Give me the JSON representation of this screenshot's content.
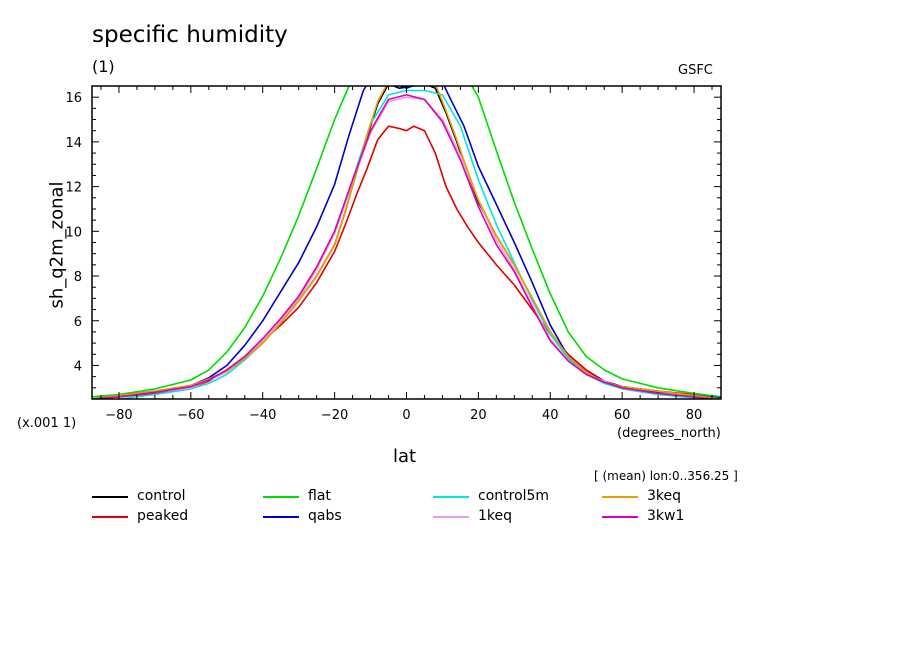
{
  "header": {
    "title": "specific humidity",
    "subtitle": "(1)",
    "source": "GSFC",
    "averaging": "[ (mean) lon:0..356.25 ]",
    "scale_note": "(x.001 1)",
    "x_units": "(degrees_north)"
  },
  "chart_data": {
    "type": "line",
    "title": "specific humidity",
    "xlabel": "lat",
    "ylabel": "sh_q2m_zonal",
    "xlim": [
      -87.5,
      87.5
    ],
    "ylim": [
      2.5,
      16.5
    ],
    "xticks": [
      -80,
      -60,
      -40,
      -20,
      0,
      20,
      40,
      60,
      80
    ],
    "yticks": [
      4,
      6,
      8,
      10,
      12,
      14,
      16
    ],
    "series": [
      {
        "name": "control",
        "color": "#000000",
        "x": [
          -87.5,
          -80,
          -70,
          -60,
          -55,
          -50,
          -45,
          -40,
          -35,
          -30,
          -25,
          -20,
          -17,
          -14,
          -11,
          -8,
          -5,
          -2,
          2,
          5,
          8,
          11,
          14,
          17,
          20,
          25,
          30,
          35,
          40,
          45,
          50,
          55,
          60,
          70,
          80,
          87.5
        ],
        "y": [
          2.5,
          2.65,
          2.85,
          3.1,
          3.4,
          3.75,
          4.3,
          5.0,
          5.9,
          6.9,
          8.0,
          9.4,
          10.9,
          12.6,
          14.2,
          15.7,
          16.6,
          16.4,
          16.5,
          16.6,
          16.4,
          15.3,
          14.0,
          12.6,
          11.3,
          9.8,
          8.5,
          7.0,
          5.5,
          4.4,
          3.7,
          3.25,
          3.05,
          2.85,
          2.65,
          2.5
        ]
      },
      {
        "name": "peaked",
        "color": "#e00000",
        "x": [
          -87.5,
          -80,
          -70,
          -60,
          -55,
          -50,
          -45,
          -40,
          -35,
          -30,
          -25,
          -20,
          -17,
          -14,
          -11,
          -8,
          -5,
          -2,
          0,
          2,
          5,
          8,
          11,
          14,
          17,
          20,
          25,
          30,
          35,
          40,
          45,
          50,
          55,
          60,
          70,
          80,
          87.5
        ],
        "y": [
          2.5,
          2.6,
          2.75,
          3.0,
          3.3,
          3.8,
          4.4,
          5.1,
          5.8,
          6.6,
          7.7,
          9.1,
          10.3,
          11.6,
          12.8,
          14.1,
          14.7,
          14.6,
          14.5,
          14.7,
          14.5,
          13.5,
          12.0,
          11.0,
          10.2,
          9.5,
          8.5,
          7.6,
          6.5,
          5.4,
          4.5,
          3.8,
          3.3,
          3.05,
          2.85,
          2.7,
          2.55
        ]
      },
      {
        "name": "flat",
        "color": "#00dd00",
        "x": [
          -87.5,
          -80,
          -70,
          -60,
          -55,
          -50,
          -45,
          -40,
          -35,
          -30,
          -25,
          -20,
          -16,
          -12,
          -8,
          -4,
          0,
          4,
          8,
          12,
          16,
          20,
          25,
          30,
          35,
          40,
          45,
          50,
          55,
          60,
          70,
          80,
          87.5
        ],
        "y": [
          2.6,
          2.7,
          2.95,
          3.35,
          3.8,
          4.6,
          5.7,
          7.1,
          8.8,
          10.7,
          12.8,
          15.0,
          16.5,
          17.2,
          17.2,
          17.05,
          17.0,
          17.05,
          17.25,
          17.3,
          17.1,
          16.0,
          13.6,
          11.3,
          9.2,
          7.2,
          5.5,
          4.4,
          3.8,
          3.4,
          3.0,
          2.75,
          2.6
        ]
      },
      {
        "name": "qabs",
        "color": "#0000cc",
        "x": [
          -87.5,
          -80,
          -70,
          -60,
          -55,
          -50,
          -45,
          -40,
          -35,
          -30,
          -25,
          -20,
          -16,
          -12,
          -9,
          -6,
          -3,
          0,
          3,
          6,
          9,
          12,
          16,
          20,
          25,
          30,
          35,
          40,
          45,
          50,
          55,
          60,
          70,
          80,
          87.5
        ],
        "y": [
          2.5,
          2.6,
          2.8,
          3.1,
          3.45,
          4.0,
          4.9,
          6.0,
          7.3,
          8.6,
          10.2,
          12.1,
          14.3,
          16.3,
          17.1,
          16.95,
          16.6,
          16.4,
          16.6,
          16.95,
          17.0,
          16.0,
          14.7,
          12.9,
          11.2,
          9.5,
          7.7,
          5.8,
          4.4,
          3.7,
          3.3,
          3.05,
          2.8,
          2.65,
          2.55
        ]
      },
      {
        "name": "control5m",
        "color": "#00e5e5",
        "x": [
          -87.5,
          -80,
          -70,
          -60,
          -55,
          -50,
          -45,
          -40,
          -35,
          -30,
          -25,
          -20,
          -15,
          -10,
          -5,
          0,
          5,
          10,
          15,
          20,
          25,
          30,
          35,
          40,
          45,
          50,
          55,
          60,
          70,
          80,
          87.5
        ],
        "y": [
          2.4,
          2.5,
          2.7,
          2.95,
          3.2,
          3.6,
          4.25,
          5.0,
          5.9,
          7.0,
          8.3,
          10.0,
          12.3,
          14.8,
          16.1,
          16.3,
          16.3,
          16.1,
          14.7,
          12.3,
          10.3,
          8.6,
          6.9,
          5.4,
          4.3,
          3.6,
          3.2,
          2.95,
          2.7,
          2.55,
          2.4
        ]
      },
      {
        "name": "1keq",
        "color": "#ee9ee0",
        "x": [
          -87.5,
          -80,
          -70,
          -60,
          -50,
          -40,
          -35,
          -30,
          -25,
          -20,
          -15,
          -10,
          -5,
          0,
          5,
          10,
          15,
          20,
          25,
          30,
          35,
          40,
          45,
          50,
          60,
          70,
          80,
          87.5
        ],
        "y": [
          2.5,
          2.6,
          2.8,
          3.0,
          3.7,
          5.1,
          6.0,
          7.0,
          8.3,
          9.9,
          12.2,
          14.4,
          15.8,
          16.0,
          15.9,
          15.0,
          13.4,
          11.4,
          9.6,
          8.3,
          6.7,
          5.2,
          4.2,
          3.6,
          3.0,
          2.75,
          2.65,
          2.5
        ]
      },
      {
        "name": "3keq",
        "color": "#e8a000",
        "x": [
          -87.5,
          -80,
          -70,
          -60,
          -55,
          -50,
          -45,
          -40,
          -35,
          -30,
          -25,
          -20,
          -17,
          -14,
          -11,
          -8,
          -5,
          -2,
          2,
          5,
          8,
          11,
          14,
          17,
          20,
          25,
          30,
          35,
          40,
          45,
          50,
          55,
          60,
          70,
          80,
          87.5
        ],
        "y": [
          2.5,
          2.65,
          2.85,
          3.1,
          3.4,
          3.75,
          4.3,
          5.0,
          5.9,
          6.9,
          8.0,
          9.4,
          10.9,
          12.6,
          14.3,
          15.8,
          16.7,
          16.6,
          16.6,
          16.7,
          16.6,
          15.4,
          14.1,
          12.7,
          11.4,
          9.8,
          8.5,
          7.0,
          5.5,
          4.4,
          3.7,
          3.25,
          3.05,
          2.85,
          2.65,
          2.5
        ]
      },
      {
        "name": "3kw1",
        "color": "#e000b0",
        "x": [
          -87.5,
          -80,
          -70,
          -60,
          -55,
          -50,
          -45,
          -40,
          -35,
          -30,
          -25,
          -20,
          -15,
          -10,
          -5,
          0,
          5,
          10,
          15,
          20,
          25,
          30,
          35,
          40,
          45,
          50,
          55,
          60,
          70,
          80,
          87.5
        ],
        "y": [
          2.5,
          2.6,
          2.8,
          3.05,
          3.35,
          3.8,
          4.4,
          5.2,
          6.1,
          7.1,
          8.4,
          10.0,
          12.3,
          14.5,
          15.9,
          16.1,
          15.9,
          14.9,
          13.2,
          11.1,
          9.4,
          8.2,
          6.6,
          5.1,
          4.2,
          3.6,
          3.25,
          3.0,
          2.75,
          2.6,
          2.45
        ]
      }
    ],
    "legend": {
      "placement": "bottom",
      "entries": [
        {
          "name": "control",
          "color": "#000000"
        },
        {
          "name": "flat",
          "color": "#00dd00"
        },
        {
          "name": "control5m",
          "color": "#00e5e5"
        },
        {
          "name": "3keq",
          "color": "#e8a000"
        },
        {
          "name": "peaked",
          "color": "#e00000"
        },
        {
          "name": "qabs",
          "color": "#0000cc"
        },
        {
          "name": "1keq",
          "color": "#ee9ee0"
        },
        {
          "name": "3kw1",
          "color": "#e000b0"
        }
      ]
    },
    "grid": false
  }
}
